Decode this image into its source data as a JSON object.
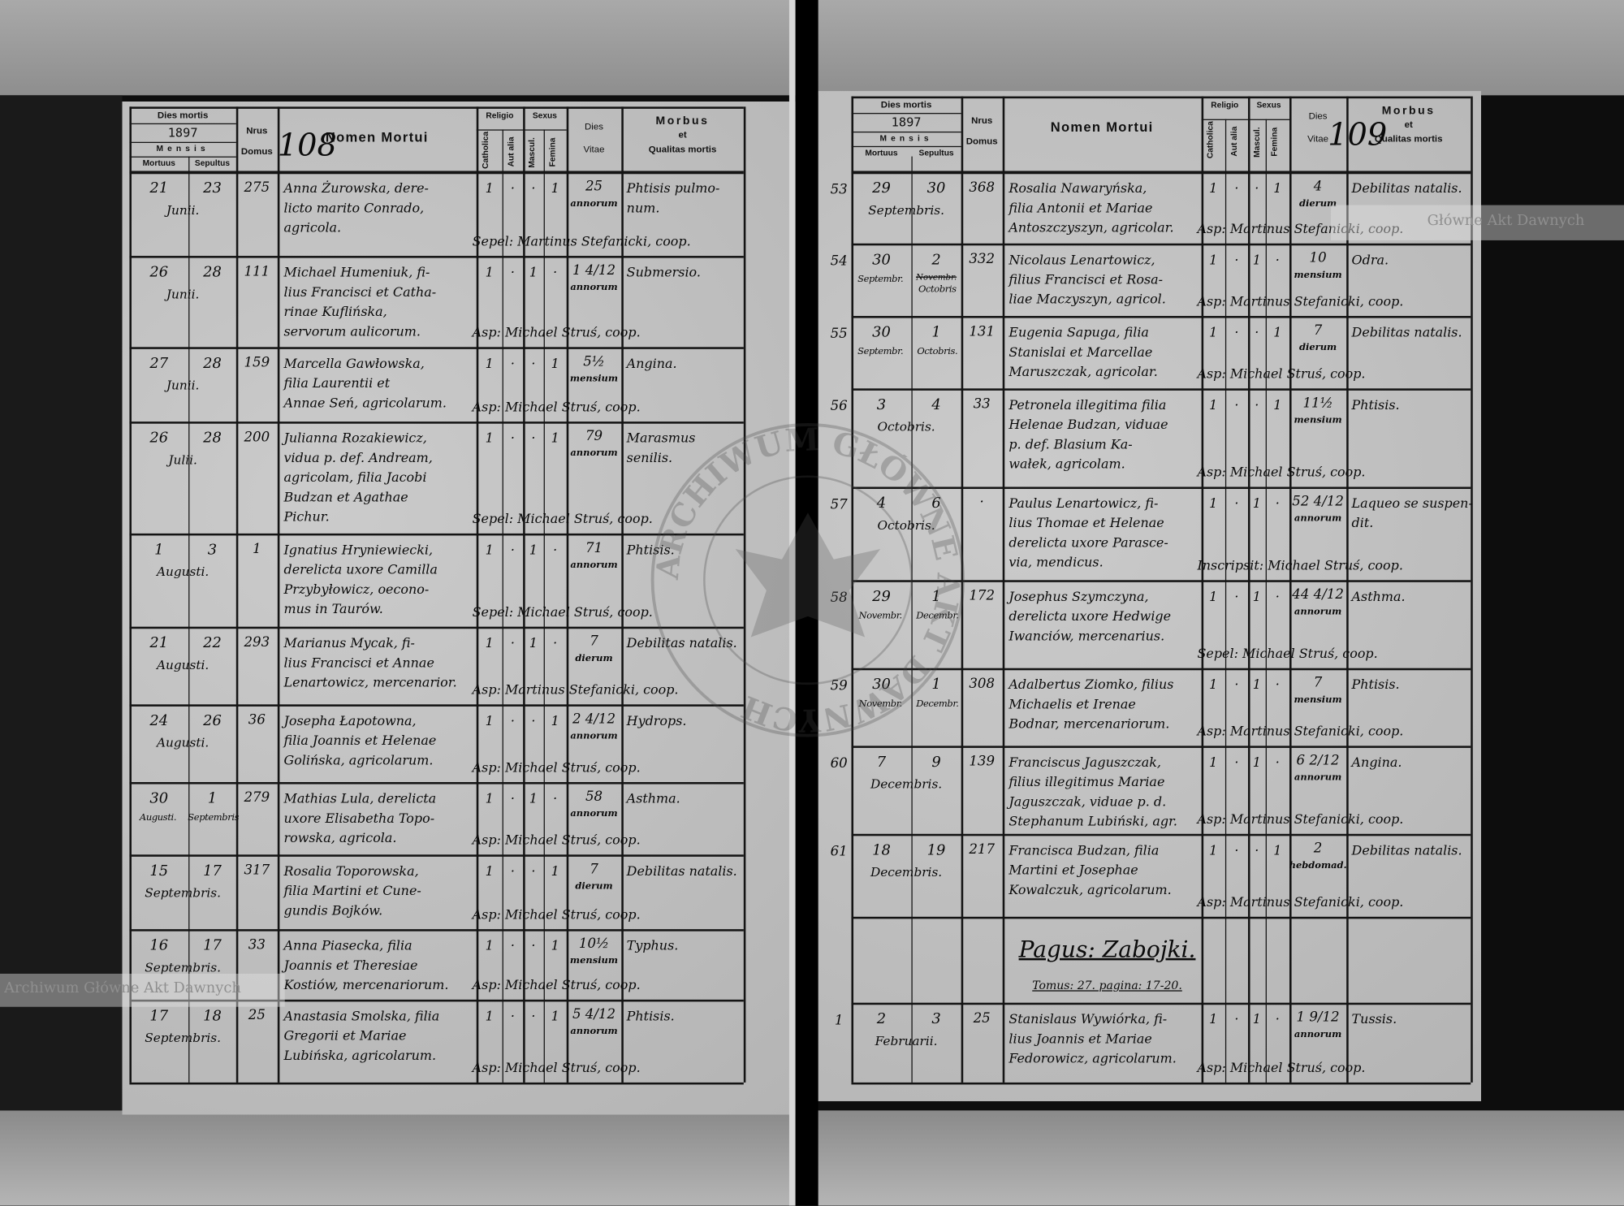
{
  "document": {
    "type": "Liber mortuorum",
    "ink_color": "#0a0a0a",
    "paper_color": "#c2c2c2"
  },
  "header": {
    "dies_mortis": "Dies mortis",
    "year": "1897",
    "mensis": "Mensis",
    "mortuus": "Mortuus",
    "sepultus": "Sepultus",
    "nrus": "Nrus",
    "domus": "Domus",
    "nomen": "Nomen Mortui",
    "religio": "Religio",
    "catholica": "Catholica",
    "aut_alia": "Aut alia",
    "sexus": "Sexus",
    "mascul": "Mascul.",
    "femina": "Femina",
    "dies_vitae_1": "Dies",
    "dies_vitae_2": "Vitae",
    "morbus_1": "Morbus",
    "morbus_2": "et",
    "morbus_3": "Qualitas mortis"
  },
  "watermarks": {
    "left": "Archiwum Główne Akt Dawnych",
    "right": "Główne Akt Dawnych",
    "seal": "ARCHIWUM GŁÓWNE AKT DAWNYCH"
  },
  "left_page": {
    "page_number": "108",
    "rows": [
      {
        "mortuus": "21",
        "sepultus": "23",
        "month": "Junii.",
        "domus": "275",
        "name_lines": [
          "Anna Żurowska, dere-",
          "licto marito Conrado,",
          "agricola."
        ],
        "catholica": "1",
        "aut_alia": "·",
        "mascul": "·",
        "femina": "1",
        "age": "25",
        "age_unit": "annorum",
        "morbus_lines": [
          "Phtisis pulmo-",
          "num."
        ],
        "signature": "Sepel: Martinus Stefanicki, coop."
      },
      {
        "mortuus": "26",
        "sepultus": "28",
        "month": "Junii.",
        "domus": "111",
        "name_lines": [
          "Michael Humeniuk, fi-",
          "lius Francisci et Catha-",
          "rinae Kuflińska,",
          "servorum aulicorum."
        ],
        "catholica": "1",
        "aut_alia": "·",
        "mascul": "1",
        "femina": "·",
        "age": "1 4/12",
        "age_unit": "annorum",
        "morbus_lines": [
          "Submersio."
        ],
        "signature": "Asp: Michael Struś, coop."
      },
      {
        "mortuus": "27",
        "sepultus": "28",
        "month": "Junii.",
        "domus": "159",
        "name_lines": [
          "Marcella Gawłowska,",
          "filia Laurentii et",
          "Annae Seń, agricolarum."
        ],
        "catholica": "1",
        "aut_alia": "·",
        "mascul": "·",
        "femina": "1",
        "age": "5½",
        "age_unit": "mensium",
        "morbus_lines": [
          "Angina."
        ],
        "signature": "Asp: Michael Struś, coop."
      },
      {
        "mortuus": "26",
        "sepultus": "28",
        "month": "Julii.",
        "domus": "200",
        "name_lines": [
          "Julianna Rozakiewicz,",
          "vidua p. def. Andream,",
          "agricolam, filia Jacobi",
          "Budzan et Agathae",
          "Pichur."
        ],
        "catholica": "1",
        "aut_alia": "·",
        "mascul": "·",
        "femina": "1",
        "age": "79",
        "age_unit": "annorum",
        "morbus_lines": [
          "Marasmus",
          "senilis."
        ],
        "signature": "Sepel: Michael Struś, coop."
      },
      {
        "mortuus": "1",
        "sepultus": "3",
        "month": "Augusti.",
        "domus": "1",
        "name_lines": [
          "Ignatius Hryniewiecki,",
          "derelicta uxore Camilla",
          "Przybyłowicz, oecono-",
          "mus in Taurów."
        ],
        "catholica": "1",
        "aut_alia": "·",
        "mascul": "1",
        "femina": "·",
        "age": "71",
        "age_unit": "annorum",
        "morbus_lines": [
          "Phtisis."
        ],
        "signature": "Sepel: Michael Struś, coop."
      },
      {
        "mortuus": "21",
        "sepultus": "22",
        "month": "Augusti.",
        "domus": "293",
        "name_lines": [
          "Marianus Mycak, fi-",
          "lius Francisci et Annae",
          "Lenartowicz, mercenarior."
        ],
        "catholica": "1",
        "aut_alia": "·",
        "mascul": "1",
        "femina": "·",
        "age": "7",
        "age_unit": "dierum",
        "morbus_lines": [
          "Debilitas natalis."
        ],
        "signature": "Asp: Martinus Stefanicki, coop."
      },
      {
        "mortuus": "24",
        "sepultus": "26",
        "month": "Augusti.",
        "domus": "36",
        "name_lines": [
          "Josepha Łapotowna,",
          "filia Joannis et Helenae",
          "Golińska, agricolarum."
        ],
        "catholica": "1",
        "aut_alia": "·",
        "mascul": "·",
        "femina": "1",
        "age": "2 4/12",
        "age_unit": "annorum",
        "morbus_lines": [
          "Hydrops."
        ],
        "signature": "Asp: Michael Struś, coop."
      },
      {
        "mortuus": "30",
        "sepultus": "1",
        "month_mortuus": "Augusti.",
        "month_sepultus": "Septembris",
        "domus": "279",
        "name_lines": [
          "Mathias Lula, derelicta",
          "uxore Elisabetha Topo-",
          "rowska, agricola."
        ],
        "catholica": "1",
        "aut_alia": "·",
        "mascul": "1",
        "femina": "·",
        "age": "58",
        "age_unit": "annorum",
        "morbus_lines": [
          "Asthma."
        ],
        "signature": "Asp: Michael Struś, coop."
      },
      {
        "mortuus": "15",
        "sepultus": "17",
        "month": "Septembris.",
        "domus": "317",
        "name_lines": [
          "Rosalia Toporowska,",
          "filia Martini et Cune-",
          "gundis Bojków."
        ],
        "catholica": "1",
        "aut_alia": "·",
        "mascul": "·",
        "femina": "1",
        "age": "7",
        "age_unit": "dierum",
        "morbus_lines": [
          "Debilitas natalis."
        ],
        "signature": "Asp: Michael Struś, coop."
      },
      {
        "mortuus": "16",
        "sepultus": "17",
        "month": "Septembris.",
        "domus": "33",
        "name_lines": [
          "Anna Piasecka, filia",
          "Joannis et Theresiae",
          "Kostiów, mercenariorum."
        ],
        "catholica": "1",
        "aut_alia": "·",
        "mascul": "·",
        "femina": "1",
        "age": "10½",
        "age_unit": "mensium",
        "morbus_lines": [
          "Typhus."
        ],
        "signature": "Asp: Michael Struś, coop."
      },
      {
        "mortuus": "17",
        "sepultus": "18",
        "month": "Septembris.",
        "domus": "25",
        "name_lines": [
          "Anastasia Smolska, filia",
          "Gregorii et Mariae",
          "Lubińska, agricolarum."
        ],
        "catholica": "1",
        "aut_alia": "·",
        "mascul": "·",
        "femina": "1",
        "age": "5 4/12",
        "age_unit": "annorum",
        "morbus_lines": [
          "Phtisis."
        ],
        "signature": "Asp: Michael Struś, coop."
      }
    ]
  },
  "right_page": {
    "page_number": "109",
    "rows": [
      {
        "number": "53",
        "mortuus": "29",
        "sepultus": "30",
        "month": "Septembris.",
        "domus": "368",
        "name_lines": [
          "Rosalia Nawaryńska,",
          "filia Antonii et Mariae",
          "Antoszczyszyn, agricolar."
        ],
        "catholica": "1",
        "aut_alia": "·",
        "mascul": "·",
        "femina": "1",
        "age": "4",
        "age_unit": "dierum",
        "morbus_lines": [
          "Debilitas natalis."
        ],
        "signature": "Asp: Martinus Stefanicki, coop."
      },
      {
        "number": "54",
        "mortuus": "30",
        "sepultus": "2",
        "month_mortuus": "Septembr.",
        "month_sepultus": "Octobris",
        "struck": "Novembr.",
        "domus": "332",
        "name_lines": [
          "Nicolaus Lenartowicz,",
          "filius Francisci et Rosa-",
          "liae Maczyszyn, agricol."
        ],
        "catholica": "1",
        "aut_alia": "·",
        "mascul": "1",
        "femina": "·",
        "age": "10",
        "age_unit": "mensium",
        "morbus_lines": [
          "Odra."
        ],
        "signature": "Asp: Martinus Stefanicki, coop."
      },
      {
        "number": "55",
        "mortuus": "30",
        "sepultus": "1",
        "month_mortuus": "Septembr.",
        "month_sepultus": "Octobris.",
        "domus": "131",
        "name_lines": [
          "Eugenia Sapuga, filia",
          "Stanislai et Marcellae",
          "Maruszczak, agricolar."
        ],
        "catholica": "1",
        "aut_alia": "·",
        "mascul": "·",
        "femina": "1",
        "age": "7",
        "age_unit": "dierum",
        "morbus_lines": [
          "Debilitas natalis."
        ],
        "signature": "Asp: Michael Struś, coop."
      },
      {
        "number": "56",
        "mortuus": "3",
        "sepultus": "4",
        "month": "Octobris.",
        "domus": "33",
        "name_lines": [
          "Petronela illegitima filia",
          "Helenae Budzan, viduae",
          "p. def. Blasium Ka-",
          "wałek, agricolam."
        ],
        "catholica": "1",
        "aut_alia": "·",
        "mascul": "·",
        "femina": "1",
        "age": "11½",
        "age_unit": "mensium",
        "morbus_lines": [
          "Phtisis."
        ],
        "signature": "Asp: Michael Struś, coop."
      },
      {
        "number": "57",
        "mortuus": "4",
        "sepultus": "6",
        "month": "Octobris.",
        "domus": "·",
        "name_lines": [
          "Paulus Lenartowicz, fi-",
          "lius Thomae et Helenae",
          "derelicta uxore Parasce-",
          "via, mendicus."
        ],
        "catholica": "1",
        "aut_alia": "·",
        "mascul": "1",
        "femina": "·",
        "age": "52 4/12",
        "age_unit": "annorum",
        "morbus_lines": [
          "Laqueo se suspen-",
          "dit."
        ],
        "signature": "Inscripsit: Michael Struś, coop."
      },
      {
        "number": "58",
        "mortuus": "29",
        "sepultus": "1",
        "month_mortuus": "Novembr.",
        "month_sepultus": "Decembr.",
        "domus": "172",
        "name_lines": [
          "Josephus Szymczyna,",
          "derelicta uxore Hedwige",
          "Iwanciów, mercenarius."
        ],
        "catholica": "1",
        "aut_alia": "·",
        "mascul": "1",
        "femina": "·",
        "age": "44 4/12",
        "age_unit": "annorum",
        "morbus_lines": [
          "Asthma."
        ],
        "signature": "Sepel: Michael Struś, coop."
      },
      {
        "number": "59",
        "mortuus": "30",
        "sepultus": "1",
        "month_mortuus": "Novembr.",
        "month_sepultus": "Decembr.",
        "domus": "308",
        "name_lines": [
          "Adalbertus Ziomko, filius",
          "Michaelis et Irenae",
          "Bodnar, mercenariorum."
        ],
        "catholica": "1",
        "aut_alia": "·",
        "mascul": "1",
        "femina": "·",
        "age": "7",
        "age_unit": "mensium",
        "morbus_lines": [
          "Phtisis."
        ],
        "signature": "Asp: Martinus Stefanicki, coop."
      },
      {
        "number": "60",
        "mortuus": "7",
        "sepultus": "9",
        "month": "Decembris.",
        "domus": "139",
        "name_lines": [
          "Franciscus Jaguszczak,",
          "filius illegitimus Mariae",
          "Jaguszczak, viduae p. d.",
          "Stephanum Lubiński, agr."
        ],
        "catholica": "1",
        "aut_alia": "·",
        "mascul": "1",
        "femina": "·",
        "age": "6 2/12",
        "age_unit": "annorum",
        "morbus_lines": [
          "Angina."
        ],
        "signature": "Asp: Martinus Stefanicki, coop."
      },
      {
        "number": "61",
        "mortuus": "18",
        "sepultus": "19",
        "month": "Decembris.",
        "domus": "217",
        "name_lines": [
          "Francisca Budzan, filia",
          "Martini et Josephae",
          "Kowalczuk, agricolarum."
        ],
        "catholica": "1",
        "aut_alia": "·",
        "mascul": "·",
        "femina": "1",
        "age": "2",
        "age_unit": "hebdomad.",
        "morbus_lines": [
          "Debilitas natalis."
        ],
        "signature": "Asp: Martinus Stefanicki, coop."
      },
      {
        "section": true,
        "section_title": "Pagus: Zabojki.",
        "section_ref": "Tomus: 27. pagina: 17-20."
      },
      {
        "number": "1",
        "mortuus": "2",
        "sepultus": "3",
        "month": "Februarii.",
        "domus": "25",
        "name_lines": [
          "Stanislaus Wywiórka, fi-",
          "lius Joannis et Mariae",
          "Fedorowicz, agricolarum."
        ],
        "catholica": "1",
        "aut_alia": "·",
        "mascul": "1",
        "femina": "·",
        "age": "1 9/12",
        "age_unit": "annorum",
        "morbus_lines": [
          "Tussis."
        ],
        "signature": "Asp: Michael Struś, coop."
      }
    ]
  }
}
